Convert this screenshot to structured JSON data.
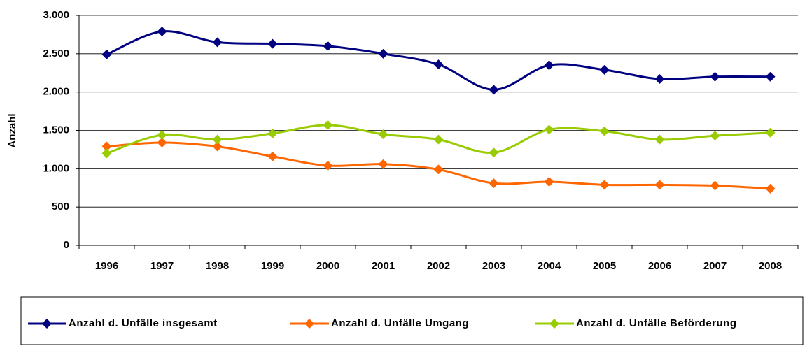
{
  "chart_data": {
    "type": "line",
    "y_label": "Anzahl",
    "categories": [
      "1996",
      "1997",
      "1998",
      "1999",
      "2000",
      "2001",
      "2002",
      "2003",
      "2004",
      "2005",
      "2006",
      "2007",
      "2008"
    ],
    "series": [
      {
        "name": "Anzahl d. Unfälle insgesamt",
        "color": "#000080",
        "values": [
          2490,
          2790,
          2650,
          2630,
          2600,
          2500,
          2360,
          2030,
          2350,
          2290,
          2170,
          2200,
          2200
        ]
      },
      {
        "name": "Anzahl d. Unfälle Umgang",
        "color": "#ff6600",
        "values": [
          1290,
          1340,
          1290,
          1160,
          1040,
          1060,
          990,
          810,
          830,
          790,
          790,
          780,
          740
        ]
      },
      {
        "name": "Anzahl d. Unfälle Beförderung",
        "color": "#99cc00",
        "values": [
          1200,
          1440,
          1380,
          1460,
          1570,
          1450,
          1380,
          1210,
          1510,
          1490,
          1380,
          1430,
          1470
        ]
      }
    ],
    "ylim": [
      0,
      3000
    ],
    "yticks": [
      0,
      500,
      {
        "value": 1000,
        "label": "1.000"
      },
      {
        "value": 1500,
        "label": "1.500"
      },
      {
        "value": 2000,
        "label": "2.000"
      },
      {
        "value": 2500,
        "label": "2.500"
      },
      {
        "value": 3000,
        "label": "3.000"
      }
    ],
    "grid": true,
    "legend": "bottom"
  }
}
